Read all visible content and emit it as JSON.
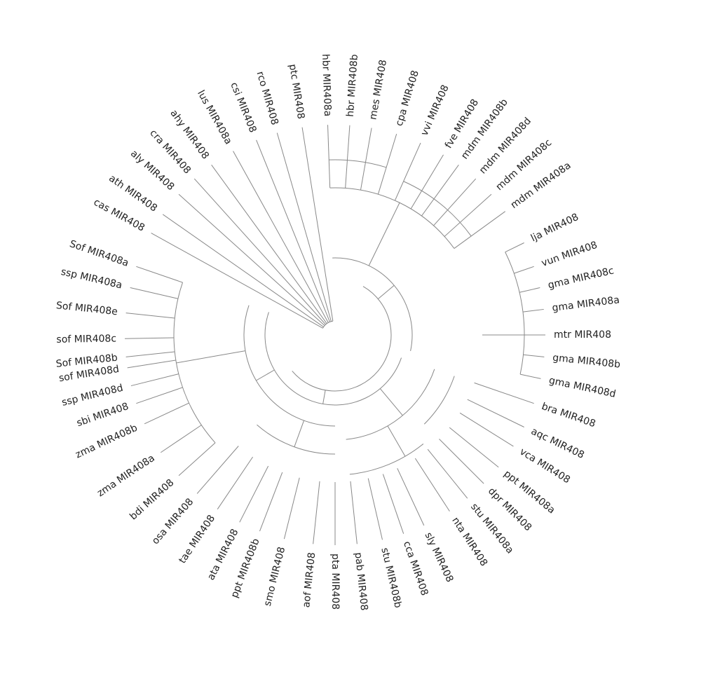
{
  "labels": [
    "hbr MIR408a",
    "hbr MIR408b",
    "mes MIR408",
    "cpa MIR408",
    "vvi MIR408",
    "fve MIR408",
    "mdm MIR408b",
    "mdm MIR408d",
    "mdm MIR408c",
    "mdm MIR408a",
    "lja MIR408",
    "vun MIR408",
    "gma MIR408c",
    "gma MIR408a",
    "mtr MIR408",
    "gma MIR408b",
    "gma MIR408d",
    "bra MIR408",
    "aqc MIR408",
    "vca MIR408",
    "ppt MIR408a",
    "dpr MIR408",
    "stu MIR408a",
    "nta MIR408",
    "sly MIR408",
    "cca MIR408",
    "stu MIR408b",
    "pab MIR408",
    "pta MIR408",
    "aof MIR408",
    "smo MIR408",
    "ppt MIR408b",
    "ata MIR408",
    "tae MIR408",
    "osa MIR408",
    "bdi MIR408",
    "zma MIR408a",
    "zma MIR408b",
    "sbi MIR408",
    "ssp MIR408d",
    "sof MIR408d",
    "Sof MIR408b",
    "sof MIR408c",
    "Sof MIR408e",
    "ssp MIR408a",
    "Sof MIR408a",
    "cas MIR408",
    "ath MIR408",
    "aly MIR408",
    "cra MIR408",
    "ahy MIR408",
    "lus MIR408a",
    "csi MIR408",
    "rco MIR408",
    "ptc MIR408"
  ]
}
